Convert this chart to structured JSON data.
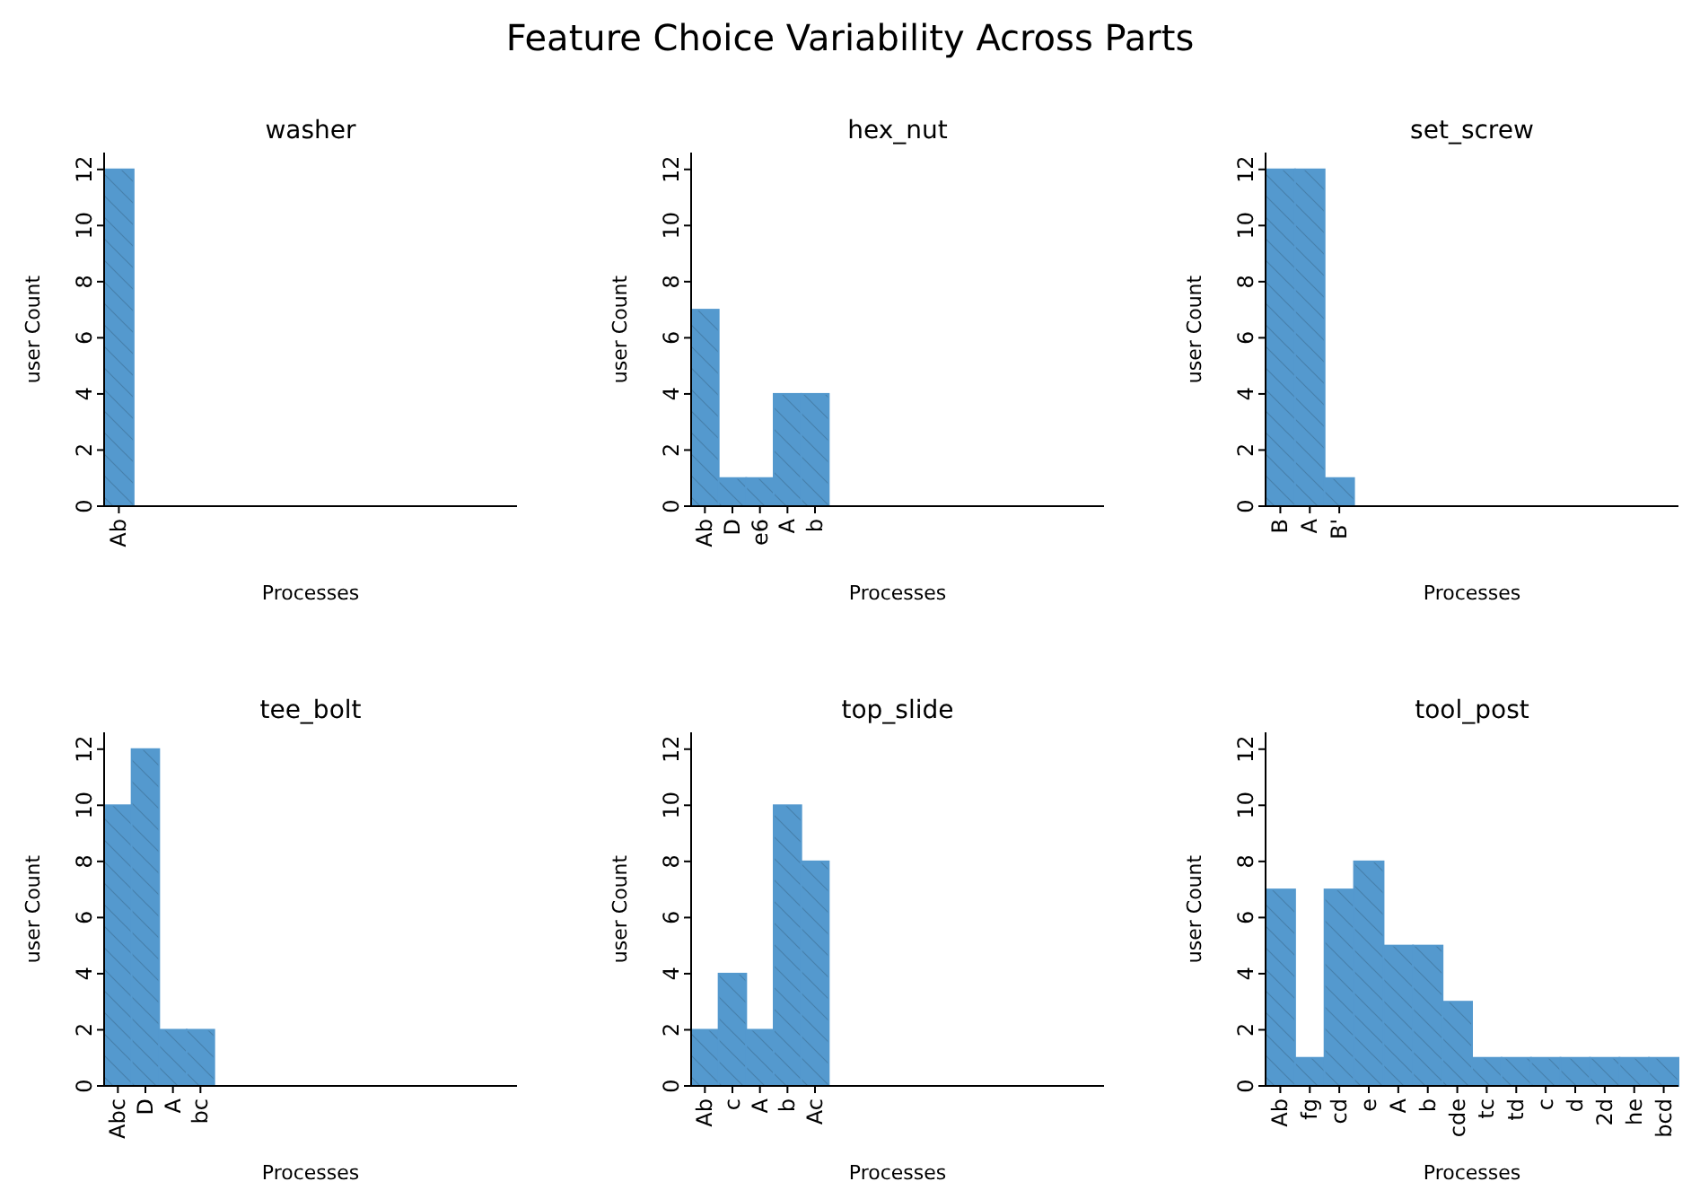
{
  "chart_data": [
    {
      "type": "other",
      "title": "Feature Choice Variability Across Parts"
    },
    {
      "type": "bar",
      "title": "washer",
      "xlabel": "Processes",
      "ylabel": "user Count",
      "categories": [
        "Ab",
        null,
        null,
        null,
        null,
        null,
        null,
        null,
        null,
        null,
        null,
        null,
        null,
        null
      ],
      "values": [
        12,
        null,
        null,
        null,
        null,
        null,
        null,
        null,
        null,
        null,
        null,
        null,
        null,
        null
      ],
      "color": "#5499ce",
      "ylim": [
        0,
        12.6
      ],
      "yticks": [
        0,
        2,
        4,
        6,
        8,
        10,
        12
      ],
      "grid": false
    },
    {
      "type": "bar",
      "title": "hex_nut",
      "xlabel": "Processes",
      "ylabel": "user Count",
      "categories": [
        "Ab",
        "D",
        "e6",
        "A",
        "b",
        null,
        null,
        null,
        null,
        null,
        null,
        null,
        null,
        null,
        null
      ],
      "values": [
        7,
        1,
        1,
        4,
        4,
        null,
        null,
        null,
        null,
        null,
        null,
        null,
        null,
        null,
        null
      ],
      "color": "#5499ce",
      "ylim": [
        0,
        12.6
      ],
      "yticks": [
        0,
        2,
        4,
        6,
        8,
        10,
        12
      ],
      "grid": false
    },
    {
      "type": "bar",
      "title": "set_screw",
      "xlabel": "Processes",
      "ylabel": "user Count",
      "categories": [
        "B",
        "A",
        "B'",
        null,
        null,
        null,
        null,
        null,
        null,
        null,
        null,
        null,
        null,
        null
      ],
      "values": [
        12,
        12,
        1,
        null,
        null,
        null,
        null,
        null,
        null,
        null,
        null,
        null,
        null,
        null
      ],
      "color": "#5499ce",
      "ylim": [
        0,
        12.6
      ],
      "yticks": [
        0,
        2,
        4,
        6,
        8,
        10,
        12
      ],
      "grid": false
    },
    {
      "type": "bar",
      "title": "tee_bolt",
      "xlabel": "Processes",
      "ylabel": "user Count",
      "categories": [
        "Abc",
        "D",
        "A",
        "bc",
        null,
        null,
        null,
        null,
        null,
        null,
        null,
        null,
        null,
        null,
        null
      ],
      "values": [
        10,
        12,
        2,
        2,
        null,
        null,
        null,
        null,
        null,
        null,
        null,
        null,
        null,
        null,
        null
      ],
      "color": "#5499ce",
      "ylim": [
        0,
        12.6
      ],
      "yticks": [
        0,
        2,
        4,
        6,
        8,
        10,
        12
      ],
      "grid": false
    },
    {
      "type": "bar",
      "title": "top_slide",
      "xlabel": "Processes",
      "ylabel": "user Count",
      "categories": [
        "Ab",
        "c",
        "A",
        "b",
        "Ac",
        null,
        null,
        null,
        null,
        null,
        null,
        null,
        null,
        null,
        null
      ],
      "values": [
        2,
        4,
        2,
        10,
        8,
        null,
        null,
        null,
        null,
        null,
        null,
        null,
        null,
        null,
        null
      ],
      "color": "#5499ce",
      "ylim": [
        0,
        12.6
      ],
      "yticks": [
        0,
        2,
        4,
        6,
        8,
        10,
        12
      ],
      "grid": false
    },
    {
      "type": "bar",
      "title": "tool_post",
      "xlabel": "Processes",
      "ylabel": "user Count",
      "categories": [
        "Ab",
        "fg",
        "cd",
        "e",
        "A",
        "b",
        "cde",
        "tc",
        "td",
        "c",
        "d",
        "2d",
        "he",
        "bcd"
      ],
      "values": [
        7,
        1,
        7,
        8,
        5,
        5,
        3,
        1,
        1,
        1,
        1,
        1,
        1,
        1
      ],
      "color": "#5499ce",
      "ylim": [
        0,
        12.6
      ],
      "yticks": [
        0,
        2,
        4,
        6,
        8,
        10,
        12
      ],
      "grid": false
    }
  ]
}
